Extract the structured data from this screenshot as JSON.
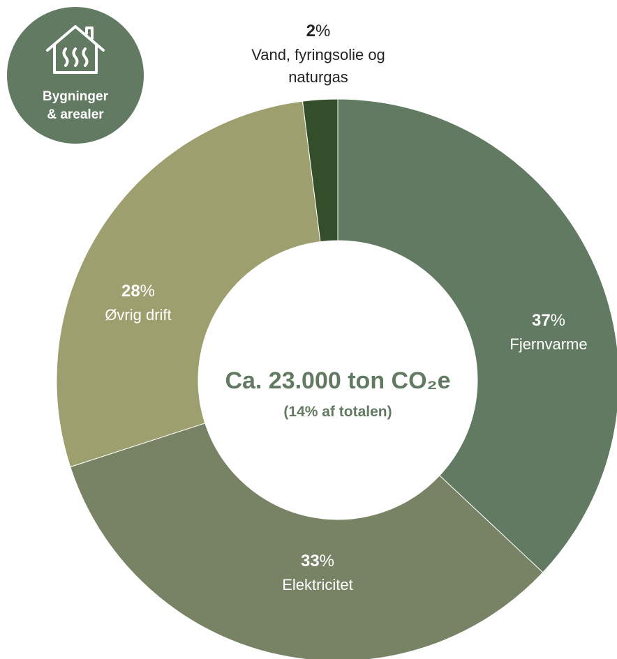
{
  "badge": {
    "lines": [
      "Bygninger",
      "& arealer"
    ]
  },
  "chart_data": {
    "type": "donut",
    "title": "Ca. 23.000 ton CO₂e",
    "subtitle": "(14% af totalen)",
    "categories": [
      "Fjernvarme",
      "Elektricitet",
      "Øvrig drift",
      "Vand, fyringsolie og naturgas"
    ],
    "values": [
      37,
      33,
      28,
      2
    ],
    "value_labels": [
      "37%",
      "33%",
      "28%",
      "2%"
    ],
    "colors": [
      "#627a62",
      "#788264",
      "#9e9f6e",
      "#344d2a"
    ]
  }
}
